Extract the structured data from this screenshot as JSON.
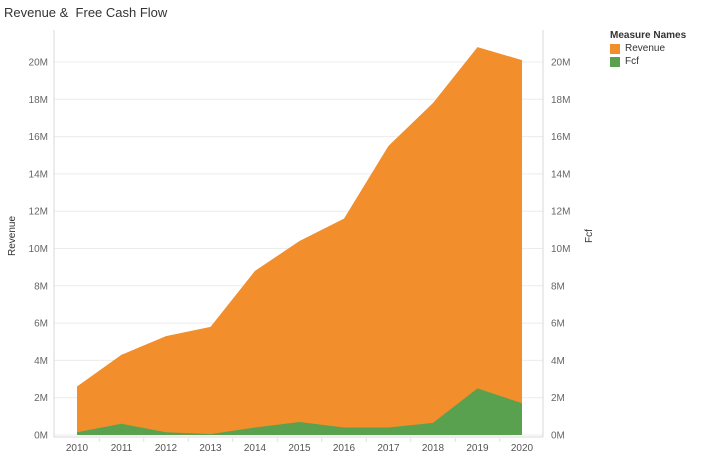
{
  "chart_data": {
    "type": "area",
    "title": "Revenue &  Free Cash Flow",
    "x": [
      "2010",
      "2011",
      "2012",
      "2013",
      "2014",
      "2015",
      "2016",
      "2017",
      "2018",
      "2019",
      "2020"
    ],
    "series": [
      {
        "name": "Revenue",
        "color": "#f28e2b",
        "values": [
          2600000,
          4300000,
          5300000,
          5800000,
          8800000,
          10400000,
          11600000,
          15500000,
          17800000,
          20800000,
          20100000
        ]
      },
      {
        "name": "Fcf",
        "color": "#59a14f",
        "values": [
          150000,
          600000,
          150000,
          50000,
          400000,
          700000,
          400000,
          400000,
          650000,
          2500000,
          1700000
        ]
      }
    ],
    "ylabel_left": "Revenue",
    "ylabel_right": "Fcf",
    "yticks": [
      "0M",
      "2M",
      "4M",
      "6M",
      "8M",
      "10M",
      "12M",
      "14M",
      "16M",
      "18M",
      "20M"
    ],
    "ylim": [
      0,
      21500000
    ],
    "grid": true,
    "legend": {
      "title": "Measure Names",
      "position": "top-right"
    }
  }
}
